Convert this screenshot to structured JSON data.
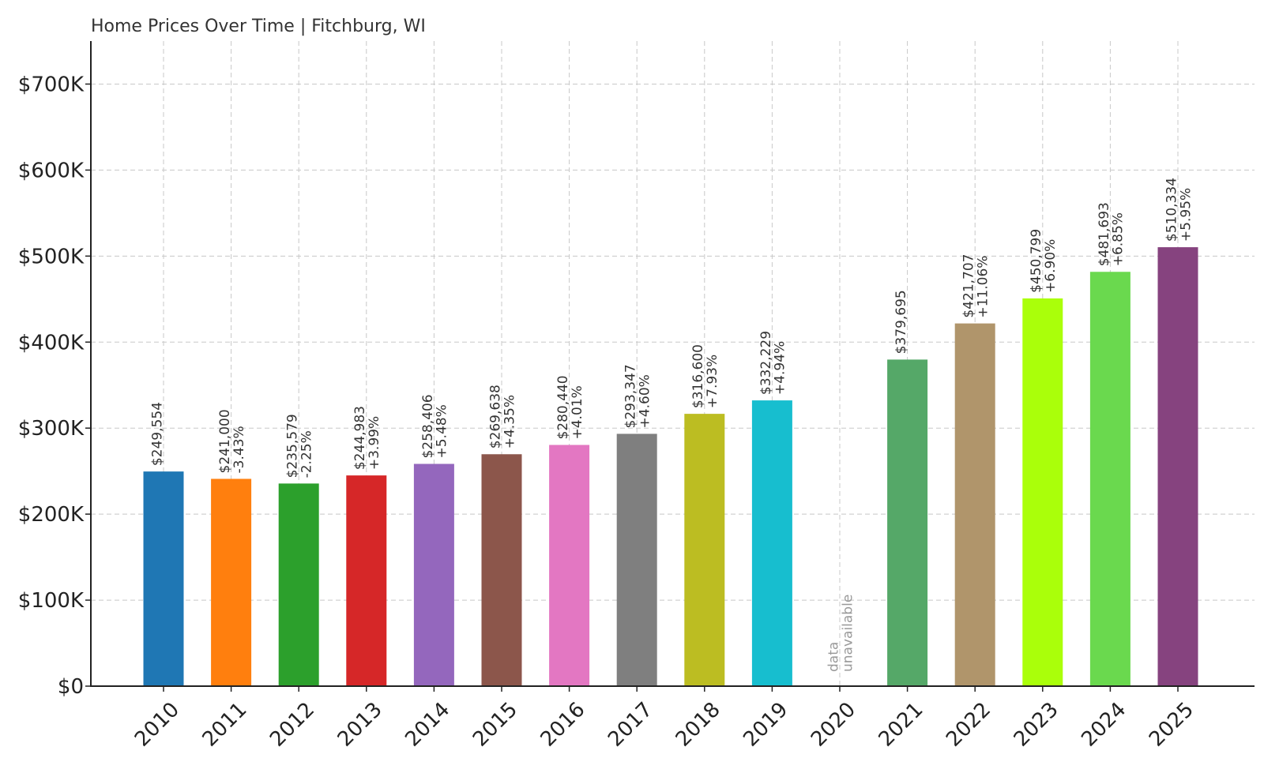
{
  "chart_data": {
    "type": "bar",
    "title": "Home Prices Over Time | Fitchburg, WI",
    "xlabel": "",
    "ylabel": "",
    "ylim": [
      0,
      750000
    ],
    "yticks": [
      0,
      100000,
      200000,
      300000,
      400000,
      500000,
      600000,
      700000
    ],
    "ytick_labels": [
      "$0",
      "$100K",
      "$200K",
      "$300K",
      "$400K",
      "$500K",
      "$600K",
      "$700K"
    ],
    "grid": true,
    "categories": [
      "2010",
      "2011",
      "2012",
      "2013",
      "2014",
      "2015",
      "2016",
      "2017",
      "2018",
      "2019",
      "2020",
      "2021",
      "2022",
      "2023",
      "2024",
      "2025"
    ],
    "values": [
      249554,
      241000,
      235579,
      244983,
      258406,
      269638,
      280440,
      293347,
      316600,
      332229,
      null,
      379695,
      421707,
      450799,
      481693,
      510334
    ],
    "value_labels": [
      "$249,554",
      "$241,000",
      "$235,579",
      "$244,983",
      "$258,406",
      "$269,638",
      "$280,440",
      "$293,347",
      "$316,600",
      "$332,229",
      "",
      "$379,695",
      "$421,707",
      "$450,799",
      "$481,693",
      "$510,334"
    ],
    "change_labels": [
      "",
      "-3.43%",
      "-2.25%",
      "+3.99%",
      "+5.48%",
      "+4.35%",
      "+4.01%",
      "+4.60%",
      "+7.93%",
      "+4.94%",
      "",
      "",
      "+11.06%",
      "+6.90%",
      "+6.85%",
      "+5.95%"
    ],
    "missing_labels": [
      "",
      "",
      "",
      "",
      "",
      "",
      "",
      "",
      "",
      "",
      "data\nunavailable",
      "",
      "",
      "",
      "",
      ""
    ],
    "colors": [
      "#1f77b4",
      "#ff7f0e",
      "#2ca02c",
      "#d62728",
      "#9467bd",
      "#8c564b",
      "#e377c2",
      "#7f7f7f",
      "#bcbd22",
      "#17becf",
      "",
      "#55a868",
      "#b0956b",
      "#aaff0a",
      "#6ad94e",
      "#86437f"
    ]
  }
}
